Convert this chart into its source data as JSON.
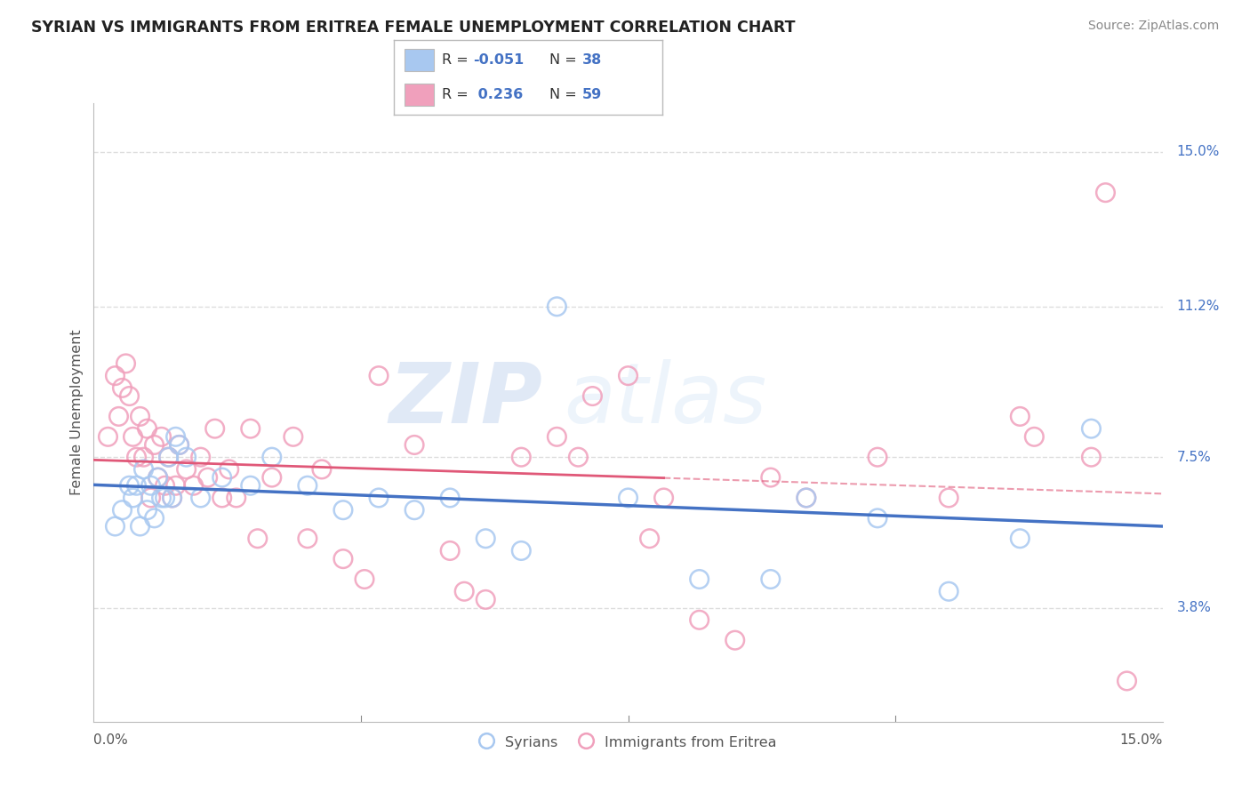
{
  "title": "SYRIAN VS IMMIGRANTS FROM ERITREA FEMALE UNEMPLOYMENT CORRELATION CHART",
  "source": "Source: ZipAtlas.com",
  "ylabel": "Female Unemployment",
  "ytick_values": [
    3.8,
    7.5,
    11.2,
    15.0
  ],
  "xmin": 0.0,
  "xmax": 15.0,
  "ymin": 1.0,
  "ymax": 16.2,
  "color_syrians": "#a8c8f0",
  "color_eritrea": "#f0a0bc",
  "color_syrians_line": "#4472c4",
  "color_eritrea_line": "#e05878",
  "scatter_syrians_x": [
    0.3,
    0.4,
    0.5,
    0.55,
    0.6,
    0.65,
    0.7,
    0.75,
    0.8,
    0.85,
    0.9,
    0.95,
    1.0,
    1.05,
    1.1,
    1.15,
    1.2,
    1.3,
    1.5,
    1.8,
    2.2,
    2.5,
    3.0,
    3.5,
    4.0,
    4.5,
    5.0,
    5.5,
    6.0,
    6.5,
    7.5,
    8.5,
    9.5,
    10.0,
    11.0,
    12.0,
    13.0,
    14.0
  ],
  "scatter_syrians_y": [
    5.8,
    6.2,
    6.8,
    6.5,
    6.8,
    5.8,
    7.2,
    6.2,
    6.8,
    6.0,
    7.0,
    6.5,
    6.5,
    7.5,
    6.5,
    8.0,
    7.8,
    7.5,
    6.5,
    7.0,
    6.8,
    7.5,
    6.8,
    6.2,
    6.5,
    6.2,
    6.5,
    5.5,
    5.2,
    11.2,
    6.5,
    4.5,
    4.5,
    6.5,
    6.0,
    4.2,
    5.5,
    8.2
  ],
  "scatter_eritrea_x": [
    0.2,
    0.3,
    0.35,
    0.4,
    0.45,
    0.5,
    0.55,
    0.6,
    0.65,
    0.7,
    0.75,
    0.8,
    0.85,
    0.9,
    0.95,
    1.0,
    1.05,
    1.1,
    1.15,
    1.2,
    1.3,
    1.4,
    1.5,
    1.6,
    1.7,
    1.8,
    1.9,
    2.0,
    2.2,
    2.5,
    2.8,
    3.0,
    3.2,
    3.5,
    4.0,
    4.5,
    5.0,
    5.5,
    6.0,
    6.5,
    7.0,
    7.5,
    8.0,
    9.0,
    9.5,
    10.0,
    11.0,
    12.0,
    13.0,
    13.2,
    14.0,
    14.5,
    2.3,
    3.8,
    5.2,
    6.8,
    7.8,
    8.5,
    14.2
  ],
  "scatter_eritrea_y": [
    8.0,
    9.5,
    8.5,
    9.2,
    9.8,
    9.0,
    8.0,
    7.5,
    8.5,
    7.5,
    8.2,
    6.5,
    7.8,
    7.0,
    8.0,
    6.8,
    7.5,
    6.5,
    6.8,
    7.8,
    7.2,
    6.8,
    7.5,
    7.0,
    8.2,
    6.5,
    7.2,
    6.5,
    8.2,
    7.0,
    8.0,
    5.5,
    7.2,
    5.0,
    9.5,
    7.8,
    5.2,
    4.0,
    7.5,
    8.0,
    9.0,
    9.5,
    6.5,
    3.0,
    7.0,
    6.5,
    7.5,
    6.5,
    8.5,
    8.0,
    7.5,
    2.0,
    5.5,
    4.5,
    4.2,
    7.5,
    5.5,
    3.5,
    14.0
  ],
  "background_color": "#ffffff",
  "grid_color": "#dddddd",
  "watermark_color": "#c8d8f0"
}
